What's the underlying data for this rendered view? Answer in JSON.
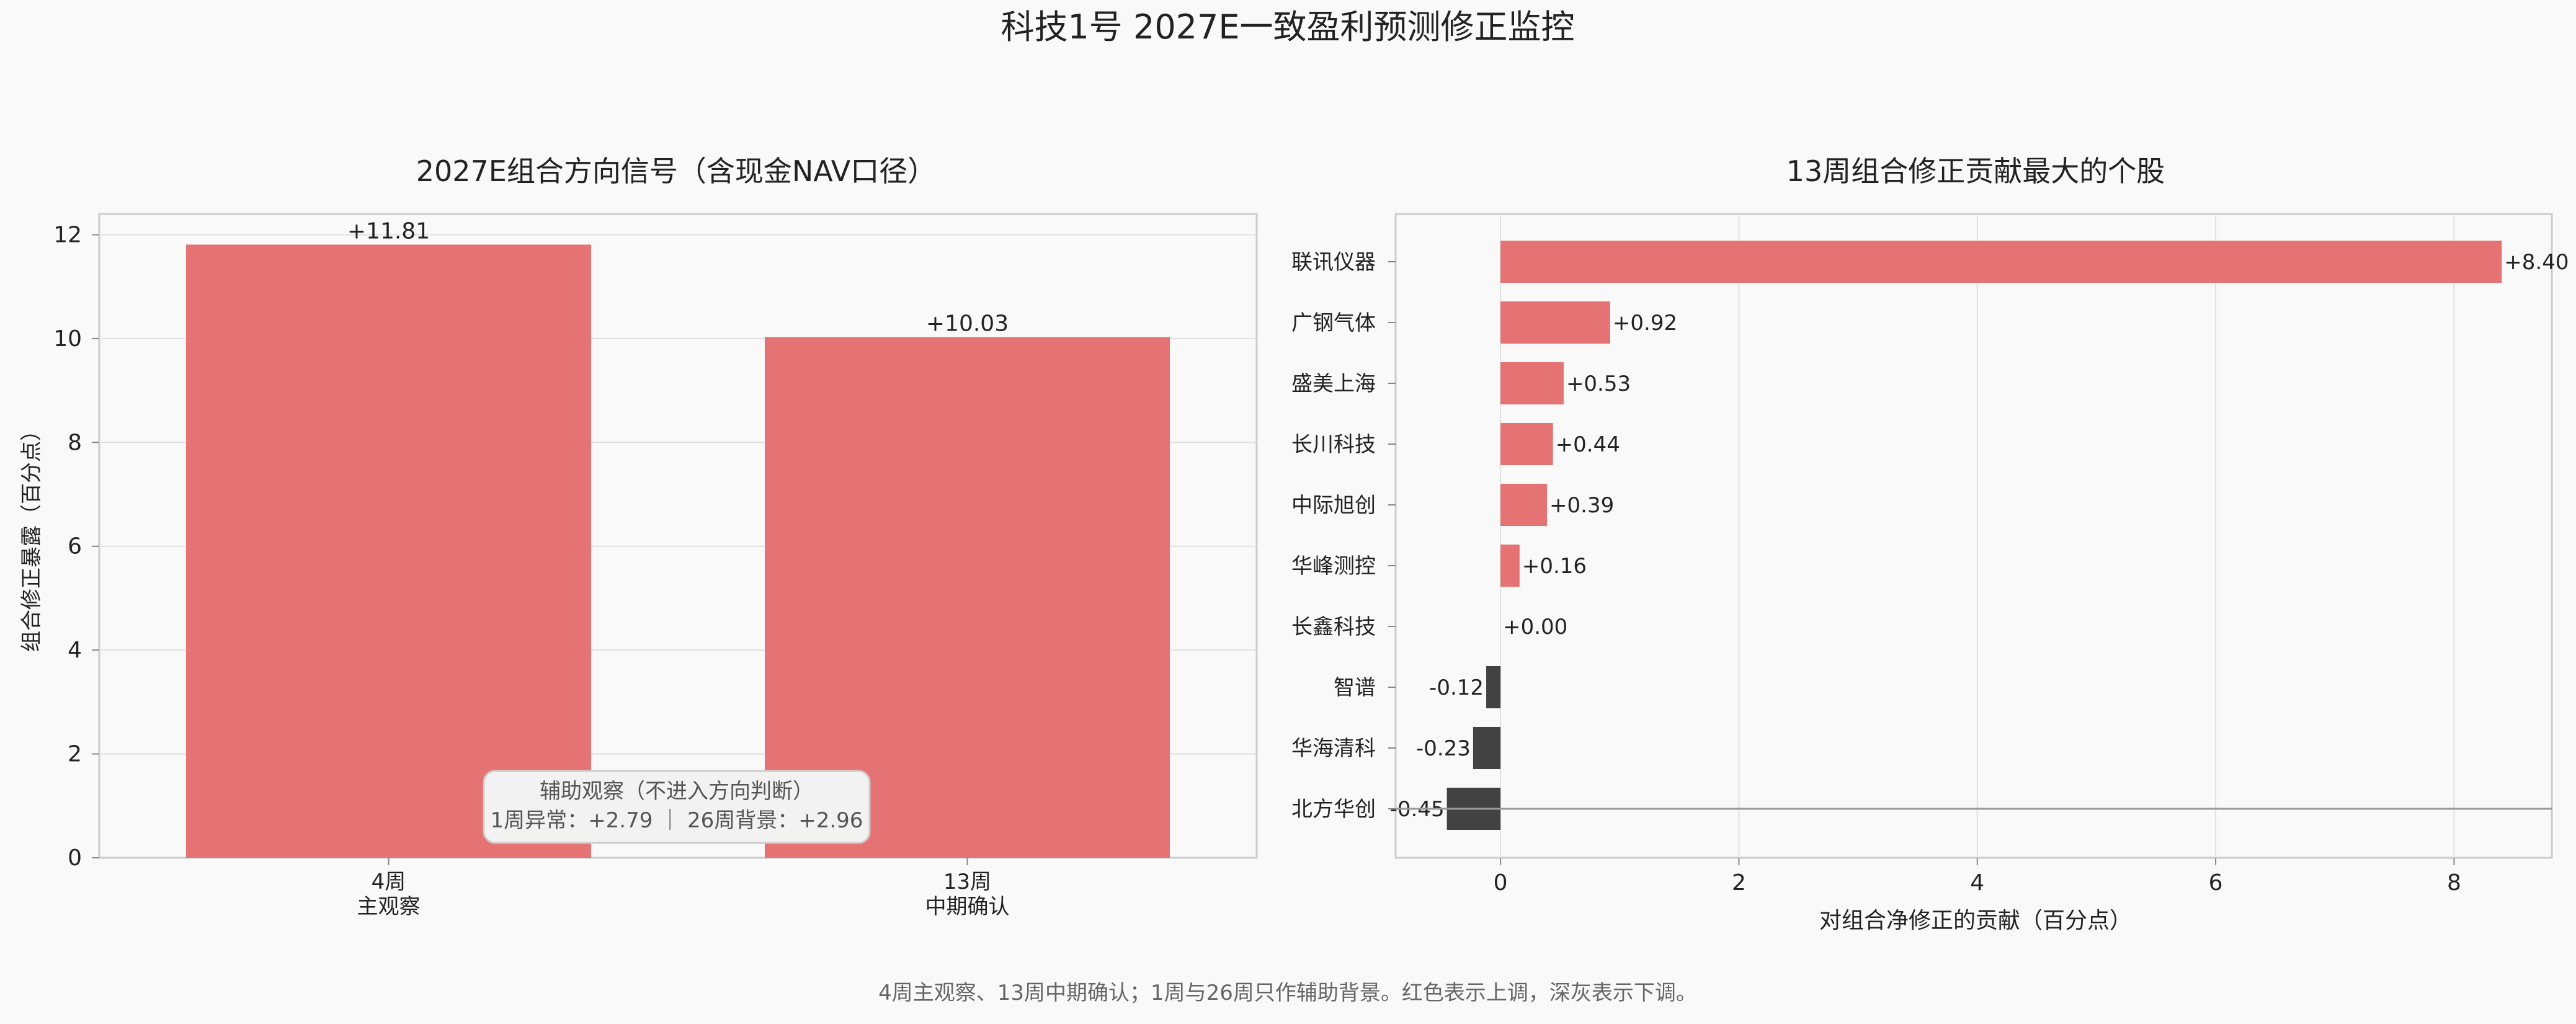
{
  "page": {
    "title": "科技1号  2027E一致盈利预测修正监控",
    "footnote": "4周主观察、13周中期确认；1周与26周只作辅助背景。红色表示上调，深灰表示下调。"
  },
  "colors": {
    "up": "#e57373",
    "down": "#424242",
    "background": "#f9f9f9",
    "grid": "#e0e0e0",
    "axis": "#bbbbbb"
  },
  "chart_data": [
    {
      "type": "bar",
      "title": "2027E组合方向信号（含现金NAV口径）",
      "ylabel": "组合修正暴露（百分点）",
      "xlabel": "",
      "ylim": [
        0,
        12.4
      ],
      "yticks": [
        0,
        2,
        4,
        6,
        8,
        10,
        12
      ],
      "grid": true,
      "categories": [
        {
          "line1": "4周",
          "line2": "主观察"
        },
        {
          "line1": "13周",
          "line2": "中期确认"
        }
      ],
      "values": [
        11.81,
        10.03
      ],
      "value_labels": [
        "+11.81",
        "+10.03"
      ],
      "annotation": {
        "line1": "辅助观察（不进入方向判断）",
        "line2": "1周异常：+2.79 ｜ 26周背景：+2.96"
      }
    },
    {
      "type": "bar",
      "orientation": "horizontal",
      "title": "13周组合修正贡献最大的个股",
      "xlabel": "对组合净修正的贡献（百分点）",
      "ylabel": "",
      "xlim": [
        -0.88,
        8.82
      ],
      "xticks": [
        0,
        2,
        4,
        6,
        8
      ],
      "grid": true,
      "categories": [
        "联讯仪器",
        "广钢气体",
        "盛美上海",
        "长川科技",
        "中际旭创",
        "华峰测控",
        "长鑫科技",
        "智谱",
        "华海清科",
        "北方华创"
      ],
      "values": [
        8.4,
        0.92,
        0.53,
        0.44,
        0.39,
        0.16,
        0.0,
        -0.12,
        -0.23,
        -0.45
      ],
      "value_labels": [
        "+8.40",
        "+0.92",
        "+0.53",
        "+0.44",
        "+0.39",
        "+0.16",
        "+0.00",
        "-0.12",
        "-0.23",
        "-0.45"
      ]
    }
  ]
}
